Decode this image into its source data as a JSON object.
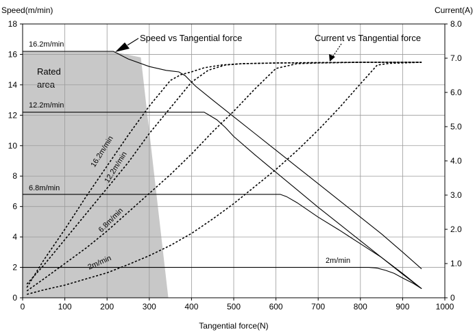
{
  "chart_data": {
    "type": "line",
    "xlabel": "Tangential force(N)",
    "ylabel_left": "Speed(m/min)",
    "ylabel_right": "Current(A)",
    "xlim": [
      0,
      1000
    ],
    "ylim_left": [
      0,
      18
    ],
    "ylim_right": [
      0,
      8.0
    ],
    "x_ticks": [
      0,
      100,
      200,
      300,
      400,
      500,
      600,
      700,
      800,
      900,
      1000
    ],
    "y_left_ticks": [
      0,
      2,
      4,
      6,
      8,
      10,
      12,
      14,
      16,
      18
    ],
    "y_right_ticks": [
      "0",
      "1.0",
      "2.0",
      "3.0",
      "4.0",
      "5.0",
      "6.0",
      "7.0",
      "8.0"
    ],
    "grid": true,
    "rated_area": {
      "label": "Rated area",
      "label_lines": [
        "Rated",
        "area"
      ],
      "polygon": [
        [
          0,
          16.2
        ],
        [
          210,
          16.2
        ],
        [
          280,
          15.8
        ],
        [
          345,
          0
        ],
        [
          0,
          0
        ]
      ],
      "color": "#c8c8c8"
    },
    "speed_series": [
      {
        "name": "16.2m/min",
        "label": "16.2m/min",
        "points": [
          [
            0,
            16.2
          ],
          [
            215,
            16.2
          ],
          [
            250,
            15.7
          ],
          [
            300,
            15.2
          ],
          [
            340,
            14.95
          ],
          [
            370,
            14.85
          ],
          [
            385,
            14.6
          ],
          [
            410,
            13.9
          ],
          [
            450,
            13.0
          ],
          [
            500,
            11.9
          ],
          [
            550,
            10.8
          ],
          [
            600,
            9.7
          ],
          [
            650,
            8.6
          ],
          [
            700,
            7.5
          ],
          [
            750,
            6.4
          ],
          [
            800,
            5.3
          ],
          [
            850,
            4.2
          ],
          [
            900,
            3.0
          ],
          [
            945,
            1.9
          ]
        ]
      },
      {
        "name": "12.2m/min",
        "label": "12.2m/min",
        "points": [
          [
            0,
            12.2
          ],
          [
            430,
            12.2
          ],
          [
            445,
            11.95
          ],
          [
            460,
            11.7
          ],
          [
            480,
            11.2
          ],
          [
            500,
            10.6
          ],
          [
            550,
            9.4
          ],
          [
            600,
            8.25
          ],
          [
            650,
            7.1
          ],
          [
            700,
            5.95
          ],
          [
            750,
            4.85
          ],
          [
            800,
            3.75
          ],
          [
            850,
            2.65
          ],
          [
            900,
            1.55
          ],
          [
            945,
            0.6
          ]
        ]
      },
      {
        "name": "6.8m/min",
        "label": "6.8m/min",
        "points": [
          [
            0,
            6.8
          ],
          [
            610,
            6.8
          ],
          [
            625,
            6.65
          ],
          [
            650,
            6.25
          ],
          [
            700,
            5.3
          ],
          [
            750,
            4.45
          ],
          [
            800,
            3.55
          ],
          [
            850,
            2.65
          ],
          [
            900,
            1.6
          ],
          [
            945,
            0.6
          ]
        ]
      },
      {
        "name": "2m/min",
        "label": "2m/min",
        "points": [
          [
            0,
            2.0
          ],
          [
            820,
            2.0
          ],
          [
            840,
            1.95
          ],
          [
            860,
            1.8
          ],
          [
            880,
            1.6
          ],
          [
            900,
            1.3
          ],
          [
            925,
            0.95
          ],
          [
            945,
            0.6
          ]
        ]
      }
    ],
    "current_series": [
      {
        "name": "16.2m/min",
        "label": "16.2m/min",
        "points": [
          [
            10,
            0.3
          ],
          [
            50,
            1.1
          ],
          [
            100,
            2.0
          ],
          [
            150,
            2.95
          ],
          [
            200,
            3.85
          ],
          [
            250,
            4.75
          ],
          [
            300,
            5.6
          ],
          [
            350,
            6.35
          ],
          [
            375,
            6.52
          ],
          [
            400,
            6.6
          ],
          [
            430,
            6.72
          ],
          [
            470,
            6.8
          ],
          [
            520,
            6.84
          ],
          [
            600,
            6.86
          ],
          [
            700,
            6.87
          ],
          [
            800,
            6.88
          ],
          [
            880,
            6.88
          ],
          [
            945,
            6.88
          ]
        ]
      },
      {
        "name": "12.2m/min",
        "label": "12.2m/min",
        "points": [
          [
            10,
            0.4
          ],
          [
            50,
            0.95
          ],
          [
            100,
            1.7
          ],
          [
            150,
            2.45
          ],
          [
            200,
            3.2
          ],
          [
            250,
            3.95
          ],
          [
            300,
            4.8
          ],
          [
            350,
            5.55
          ],
          [
            400,
            6.3
          ],
          [
            440,
            6.65
          ],
          [
            480,
            6.8
          ],
          [
            520,
            6.84
          ],
          [
            600,
            6.86
          ],
          [
            700,
            6.87
          ],
          [
            800,
            6.88
          ],
          [
            945,
            6.88
          ]
        ]
      },
      {
        "name": "6.8m/min",
        "label": "6.8m/min",
        "points": [
          [
            10,
            0.2
          ],
          [
            50,
            0.55
          ],
          [
            100,
            1.0
          ],
          [
            150,
            1.45
          ],
          [
            200,
            1.95
          ],
          [
            250,
            2.5
          ],
          [
            300,
            3.05
          ],
          [
            350,
            3.6
          ],
          [
            400,
            4.2
          ],
          [
            450,
            4.85
          ],
          [
            500,
            5.45
          ],
          [
            550,
            6.1
          ],
          [
            600,
            6.7
          ],
          [
            650,
            6.84
          ],
          [
            700,
            6.86
          ],
          [
            800,
            6.88
          ],
          [
            945,
            6.88
          ]
        ]
      },
      {
        "name": "2m/min",
        "label": "2m/min",
        "points": [
          [
            10,
            0.1
          ],
          [
            50,
            0.23
          ],
          [
            100,
            0.37
          ],
          [
            150,
            0.55
          ],
          [
            200,
            0.73
          ],
          [
            250,
            0.97
          ],
          [
            300,
            1.23
          ],
          [
            350,
            1.53
          ],
          [
            400,
            1.88
          ],
          [
            450,
            2.3
          ],
          [
            500,
            2.75
          ],
          [
            550,
            3.25
          ],
          [
            600,
            3.75
          ],
          [
            650,
            4.3
          ],
          [
            700,
            4.9
          ],
          [
            750,
            5.55
          ],
          [
            800,
            6.25
          ],
          [
            840,
            6.8
          ],
          [
            870,
            6.85
          ],
          [
            945,
            6.88
          ]
        ]
      }
    ],
    "annotations": {
      "speed_vs_force": "Speed vs Tangential force",
      "current_vs_force": "Current vs Tangential force"
    }
  }
}
